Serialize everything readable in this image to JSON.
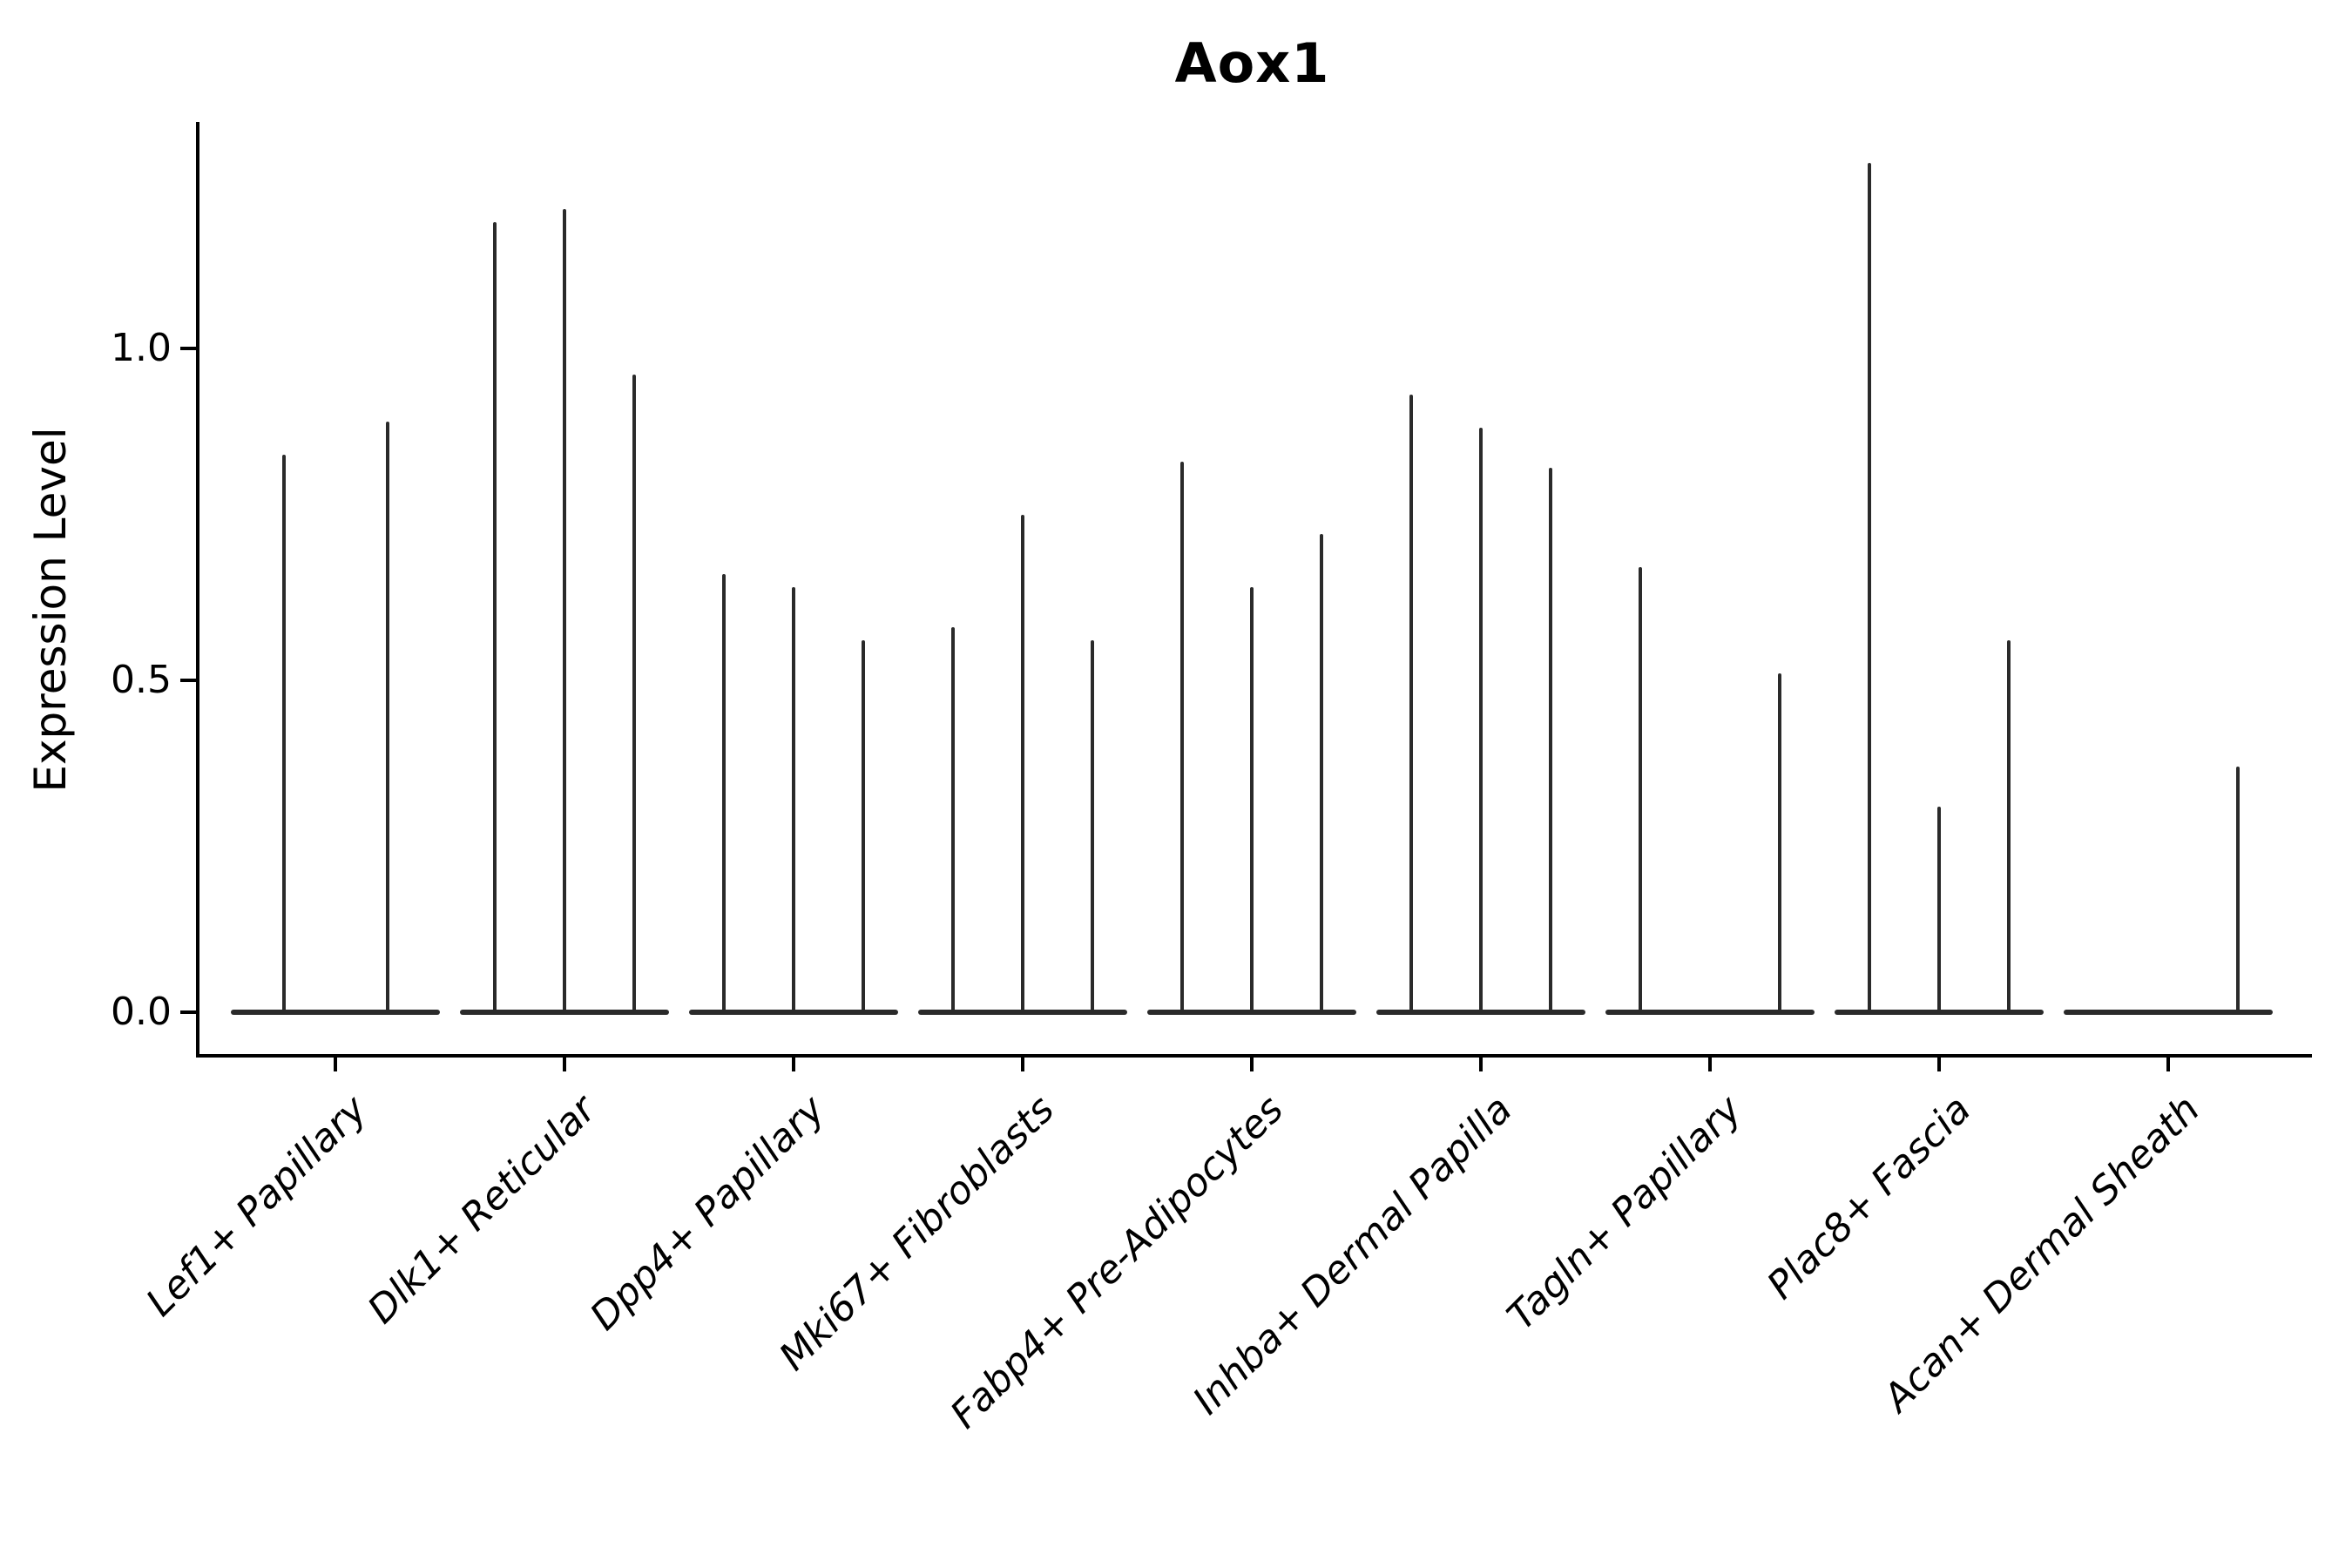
{
  "figure": {
    "title": "Aox1",
    "background_color": "#ffffff"
  },
  "axes": {
    "ylabel": "Expression Level",
    "ytick_labels": [
      "0.0",
      "0.5",
      "1.0"
    ],
    "ytick_values": [
      0.0,
      0.5,
      1.0
    ],
    "spine_color": "#000000"
  },
  "chart_data": {
    "type": "violin",
    "title": "Aox1",
    "xlabel": "",
    "ylabel": "Expression Level",
    "ylim": [
      0.0,
      1.34
    ],
    "yticks": [
      0.0,
      0.5,
      1.0
    ],
    "grid": false,
    "legend": "none",
    "style_note": "thin black violin outlines: flat base at expression 0 with a narrow spike up to the max expression; up to 3 sub-violins per category, flat sub-violins have no spike",
    "line_color": "#2a2a2a",
    "categories": [
      "Lef1+ Papillary",
      "Dlk1+ Reticular",
      "Dpp4+ Papillary",
      "Mki67+ Fibroblasts",
      "Fabp4+ Pre-Adipocytes",
      "Inhba+ Dermal Papilla",
      "Tagln+ Papillary",
      "Plac8+ Fascia",
      "Acan+ Dermal Sheath"
    ],
    "violins": [
      {
        "category": "Lef1+ Papillary",
        "slots": 2,
        "spike_maxima": [
          0.84,
          0.89
        ]
      },
      {
        "category": "Dlk1+ Reticular",
        "slots": 3,
        "spike_maxima": [
          1.19,
          1.21,
          0.96
        ]
      },
      {
        "category": "Dpp4+ Papillary",
        "slots": 3,
        "spike_maxima": [
          0.66,
          0.64,
          0.56
        ]
      },
      {
        "category": "Mki67+ Fibroblasts",
        "slots": 3,
        "spike_maxima": [
          0.58,
          0.75,
          0.56
        ]
      },
      {
        "category": "Fabp4+ Pre-Adipocytes",
        "slots": 3,
        "spike_maxima": [
          0.83,
          0.64,
          0.72
        ]
      },
      {
        "category": "Inhba+ Dermal Papilla",
        "slots": 3,
        "spike_maxima": [
          0.93,
          0.88,
          0.82
        ]
      },
      {
        "category": "Tagln+ Papillary",
        "slots": 3,
        "spike_maxima": [
          0.67,
          null,
          0.51
        ]
      },
      {
        "category": "Plac8+ Fascia",
        "slots": 3,
        "spike_maxima": [
          1.28,
          0.31,
          0.56
        ]
      },
      {
        "category": "Acan+ Dermal Sheath",
        "slots": 3,
        "spike_maxima": [
          null,
          null,
          0.37
        ]
      }
    ]
  }
}
